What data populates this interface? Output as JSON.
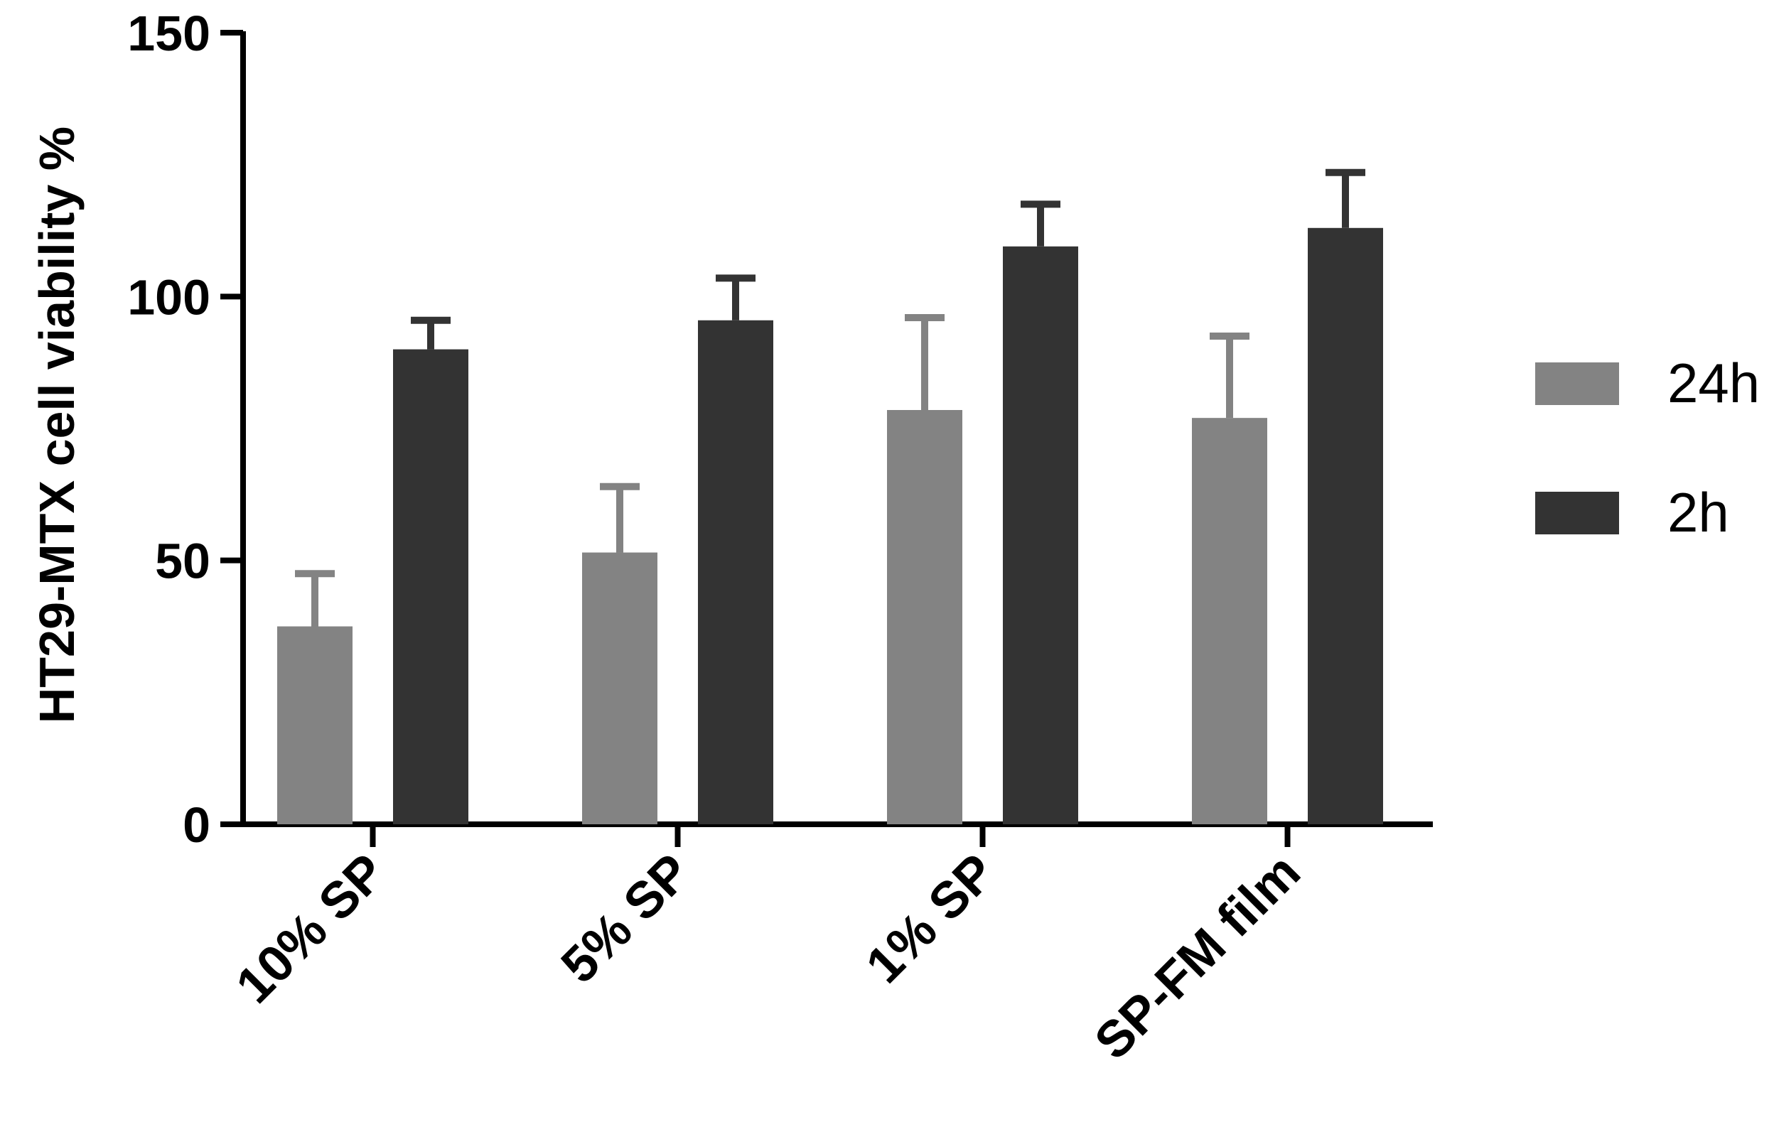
{
  "chart_data": {
    "type": "bar",
    "title": "",
    "xlabel": "",
    "ylabel": "HT29-MTX cell viability %",
    "ylim": [
      0,
      150
    ],
    "yticks": [
      0,
      50,
      100,
      150
    ],
    "categories": [
      "10% SP",
      "5% SP",
      "1% SP",
      "SP-FM film"
    ],
    "series": [
      {
        "name": "24h",
        "color": "#838383",
        "values": [
          37.5,
          51.5,
          78.5,
          77
        ],
        "errors": [
          10,
          12.5,
          17.5,
          15.5
        ]
      },
      {
        "name": "2h",
        "color": "#333333",
        "values": [
          90,
          95.5,
          109.5,
          113
        ],
        "errors": [
          5.5,
          8,
          8,
          10.5
        ]
      }
    ],
    "legend_position": "right",
    "grid": false,
    "error_bars": "upper"
  }
}
